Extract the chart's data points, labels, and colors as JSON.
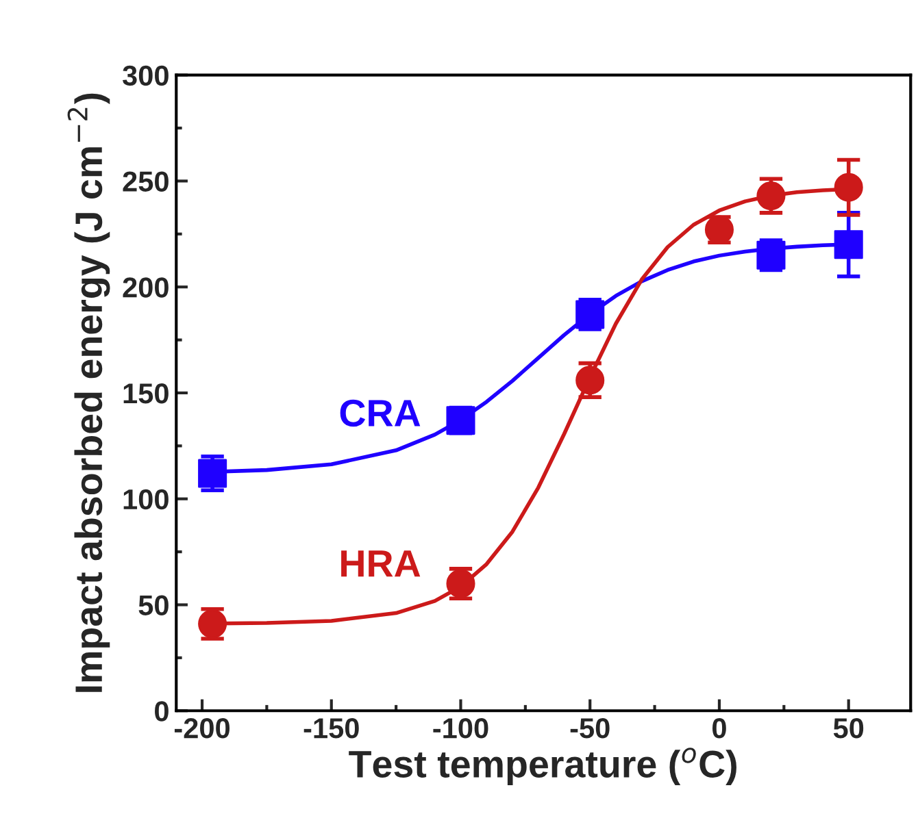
{
  "chart_data": {
    "type": "scatter",
    "xlabel": "Test temperature ($^{o}$C)",
    "ylabel": "Impact absorbed energy (J cm$^{−2}$)",
    "xlim": [
      -210,
      74
    ],
    "xticks": [
      -200,
      -150,
      -100,
      -50,
      0,
      50
    ],
    "ylim": [
      0,
      300
    ],
    "yticks": [
      0,
      50,
      100,
      150,
      200,
      250,
      300
    ],
    "grid": false,
    "legend": false,
    "series": [
      {
        "type": "line",
        "color": "#1f00ff",
        "marker": "none",
        "line_style": "solid",
        "x": [
          -200,
          -175,
          -150,
          -125,
          -110,
          -100,
          -90,
          -80,
          -70,
          -60,
          -50,
          -40,
          -30,
          -20,
          -10,
          0,
          10,
          20,
          30,
          40,
          50
        ],
        "values": [
          112.6,
          113.6,
          116.3,
          122.9,
          130.3,
          137.2,
          145.8,
          155.7,
          166.5,
          177.3,
          187.2,
          195.8,
          202.7,
          208.0,
          212.0,
          214.8,
          216.7,
          218.1,
          219.0,
          219.7,
          220.1
        ]
      },
      {
        "type": "line",
        "color": "#cc1a1a",
        "marker": "none",
        "line_style": "solid",
        "x": [
          -200,
          -175,
          -150,
          -125,
          -110,
          -100,
          -90,
          -80,
          -70,
          -60,
          -50,
          -40,
          -30,
          -20,
          -10,
          0,
          10,
          20,
          30,
          40,
          50
        ],
        "values": [
          41.1,
          41.4,
          42.4,
          46.1,
          51.8,
          58.6,
          69.2,
          84.5,
          105.3,
          130.6,
          157.4,
          182.7,
          203.5,
          218.8,
          229.3,
          236.1,
          240.4,
          243.1,
          244.7,
          245.6,
          246.2
        ]
      },
      {
        "name": "CRA",
        "color": "#1f00ff",
        "marker": "square",
        "x": [
          -196,
          -100,
          -50,
          20,
          50
        ],
        "values": [
          112,
          137,
          187,
          215,
          220
        ],
        "errors": [
          8,
          6,
          7,
          7,
          15
        ]
      },
      {
        "name": "HRA",
        "color": "#cc1a1a",
        "marker": "circle",
        "x": [
          -196,
          -100,
          -50,
          0,
          20,
          50
        ],
        "values": [
          41,
          60,
          156,
          227,
          243,
          247
        ],
        "errors": [
          7,
          7,
          8,
          6,
          8,
          13
        ]
      }
    ]
  }
}
